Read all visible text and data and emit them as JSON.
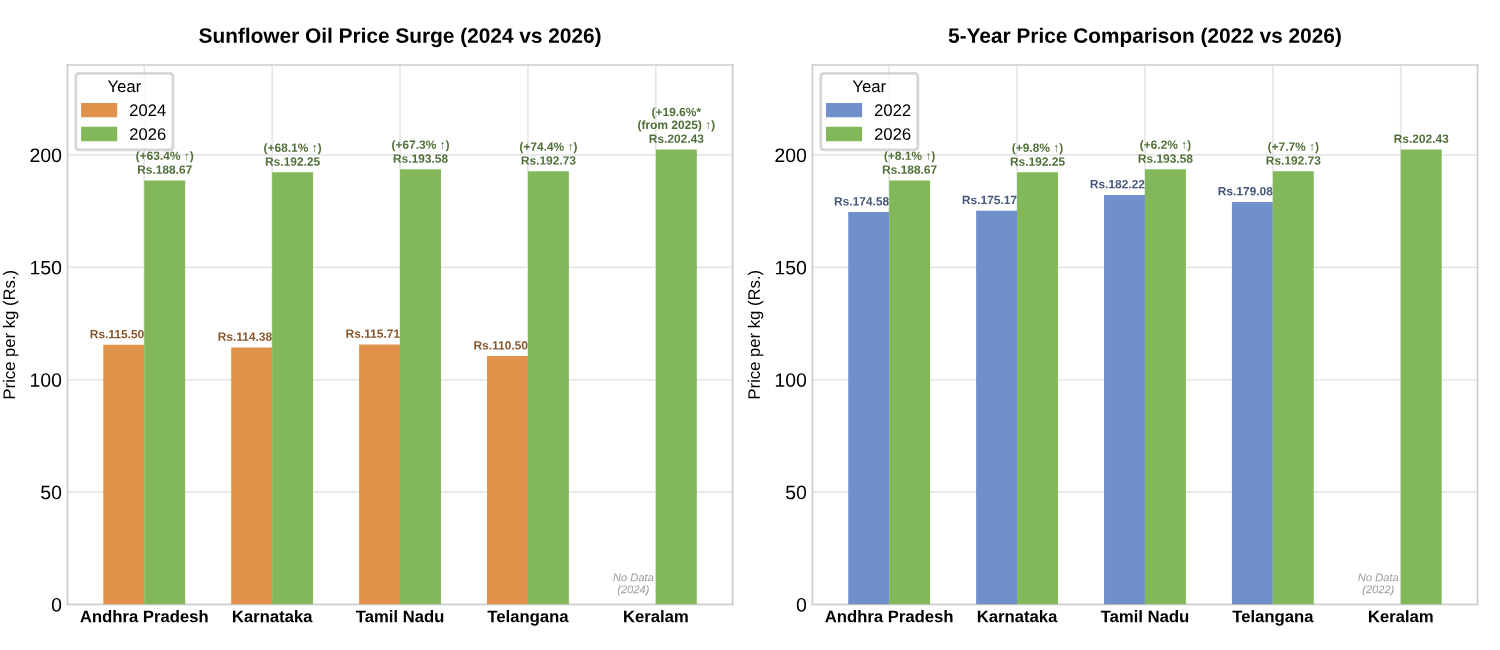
{
  "chart_data": [
    {
      "type": "bar",
      "title": "Sunflower Oil Price Surge (2024 vs 2026)",
      "ylabel": "Price per kg (Rs.)",
      "legend_title": "Year",
      "legend": "top left",
      "grid": true,
      "categories": [
        "Andhra Pradesh",
        "Karnataka",
        "Tamil Nadu",
        "Telangana",
        "Keralam"
      ],
      "ylim": [
        0,
        240
      ],
      "yticks": [
        0,
        50,
        100,
        150,
        200
      ],
      "series": [
        {
          "name": "2024",
          "color": "#e0914a",
          "values": [
            115.5,
            114.38,
            115.71,
            110.5,
            null
          ],
          "value_labels": [
            "Rs.115.50",
            "Rs.114.38",
            "Rs.115.71",
            "Rs.110.50",
            null
          ]
        },
        {
          "name": "2026",
          "color": "#82b85a",
          "values": [
            188.67,
            192.25,
            193.58,
            192.73,
            202.43
          ],
          "value_labels": [
            "Rs.188.67",
            "Rs.192.25",
            "Rs.193.58",
            "Rs.192.73",
            "Rs.202.43"
          ]
        }
      ],
      "annotations": [
        {
          "text": "(+63.4% ↑)",
          "x": "Andhra Pradesh",
          "y": 188.67
        },
        {
          "text": "(+68.1% ↑)",
          "x": "Karnataka",
          "y": 192.25
        },
        {
          "text": "(+67.3% ↑)",
          "x": "Tamil Nadu",
          "y": 193.58
        },
        {
          "text": "(+74.4% ↑)",
          "x": "Telangana",
          "y": 192.73
        },
        {
          "text": "(+19.6%*\n(from 2025) ↑)",
          "x": "Keralam",
          "y": 202.43
        },
        {
          "text": "No Data\n(2024)",
          "x": "Keralam",
          "y": 0
        }
      ]
    },
    {
      "type": "bar",
      "title": "5-Year Price Comparison (2022 vs 2026)",
      "ylabel": "Price per kg (Rs.)",
      "legend_title": "Year",
      "legend": "top left",
      "grid": true,
      "categories": [
        "Andhra Pradesh",
        "Karnataka",
        "Tamil Nadu",
        "Telangana",
        "Keralam"
      ],
      "ylim": [
        0,
        240
      ],
      "yticks": [
        0,
        50,
        100,
        150,
        200
      ],
      "series": [
        {
          "name": "2022",
          "color": "#7090cc",
          "values": [
            174.58,
            175.17,
            182.22,
            179.08,
            null
          ],
          "value_labels": [
            "Rs.174.58",
            "Rs.175.17",
            "Rs.182.22",
            "Rs.179.08",
            null
          ]
        },
        {
          "name": "2026",
          "color": "#82b85a",
          "values": [
            188.67,
            192.25,
            193.58,
            192.73,
            202.43
          ],
          "value_labels": [
            "Rs.188.67",
            "Rs.192.25",
            "Rs.193.58",
            "Rs.192.73",
            "Rs.202.43"
          ]
        }
      ],
      "annotations": [
        {
          "text": "(+8.1% ↑)",
          "x": "Andhra Pradesh",
          "y": 188.67
        },
        {
          "text": "(+9.8% ↑)",
          "x": "Karnataka",
          "y": 192.25
        },
        {
          "text": "(+6.2% ↑)",
          "x": "Tamil Nadu",
          "y": 193.58
        },
        {
          "text": "(+7.7% ↑)",
          "x": "Telangana",
          "y": 192.73
        },
        {
          "text": "No Data\n(2022)",
          "x": "Keralam",
          "y": 0
        }
      ]
    }
  ]
}
